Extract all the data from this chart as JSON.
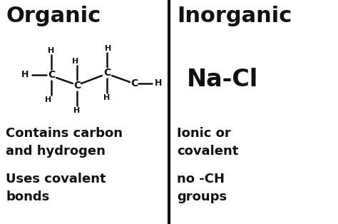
{
  "bg_color": "#ffffff",
  "divider_color": "#111111",
  "text_color": "#111111",
  "left_title": "Organic",
  "right_title": "Inorganic",
  "right_nacl": "Na-Cl",
  "left_text1": "Contains carbon\nand hydrogen",
  "left_text2": "Uses covalent\nbonds",
  "right_text1": "Ionic or\ncovalent",
  "right_text2": "no -CH\ngroups",
  "figwidth": 4.74,
  "figheight": 3.14,
  "dpi": 100
}
